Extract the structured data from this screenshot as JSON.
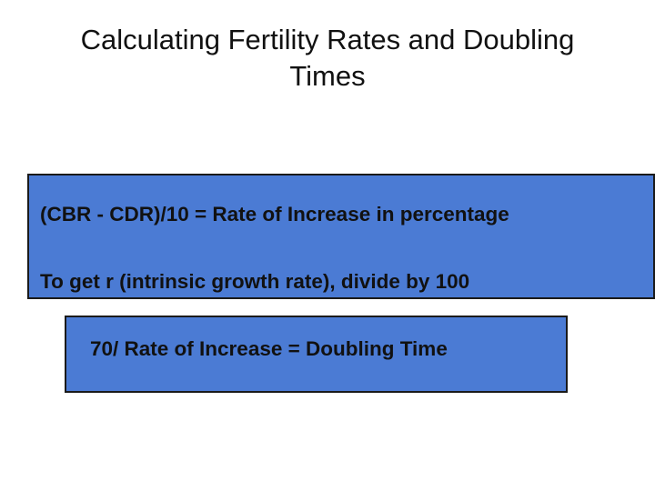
{
  "slide": {
    "title_line1": "Calculating Fertility Rates and Doubling",
    "title_line2": "Times",
    "main_box": {
      "line1": "(CBR - CDR)/10 = Rate of Increase in percentage",
      "line2": "To get r (intrinsic growth rate), divide by 100"
    },
    "secondary_box": {
      "text": "70/ Rate of Increase = Doubling Time"
    }
  },
  "colors": {
    "background": "#ffffff",
    "box_fill": "#4b7bd4",
    "text": "#111111"
  }
}
